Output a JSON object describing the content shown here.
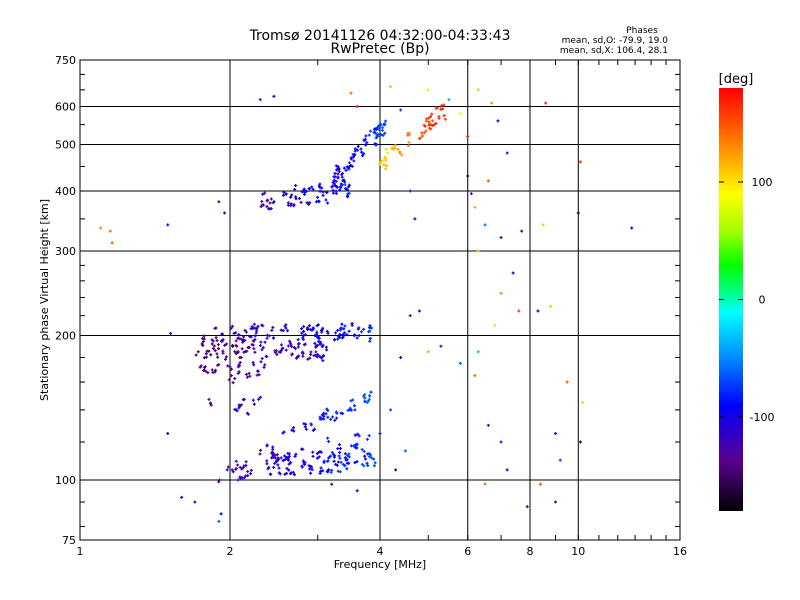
{
  "chart_data": {
    "type": "scatter",
    "title": "Tromsø 20141126 04:32:00-04:33:43",
    "subtitle": "RwPretec (Bp)",
    "xlabel": "Frequency [MHz]",
    "ylabel": "Stationary phase Virtual Height [km]",
    "x_scale": "log",
    "y_scale": "log",
    "xlim": [
      1,
      16
    ],
    "ylim": [
      75,
      750
    ],
    "x_ticks": [
      1,
      2,
      4,
      6,
      8,
      10,
      16
    ],
    "x_tick_labels": [
      "1",
      "2",
      "4",
      "6",
      "8",
      "10",
      "16"
    ],
    "y_ticks": [
      75,
      100,
      200,
      300,
      400,
      500,
      600,
      750
    ],
    "y_tick_labels": [
      "75",
      "100",
      "200",
      "300",
      "400",
      "500",
      "600",
      "750"
    ],
    "grid": true,
    "legend": {
      "title": "Phases",
      "lines": [
        "mean, sd,O: -79.9, 19.0",
        "mean, sd,X: 106.4, 28.1"
      ]
    },
    "colorbar": {
      "label": "[deg]",
      "min": -180,
      "max": 180,
      "ticks": [
        100,
        0,
        -100
      ],
      "tick_labels": [
        "100",
        "0",
        "-100"
      ]
    },
    "traces": [
      {
        "x0": 1.75,
        "x1": 3.9,
        "h0": 200,
        "h1": 205,
        "p0": -135,
        "p1": -80,
        "n": 70
      },
      {
        "x0": 1.7,
        "x1": 3.2,
        "h0": 185,
        "h1": 187,
        "p0": -150,
        "p1": -110,
        "n": 55
      },
      {
        "x0": 1.72,
        "x1": 2.4,
        "h0": 168,
        "h1": 170,
        "p0": -145,
        "p1": -120,
        "n": 20
      },
      {
        "x0": 1.78,
        "x1": 2.3,
        "h0": 143,
        "h1": 142,
        "p0": -130,
        "p1": -110,
        "n": 10
      },
      {
        "x0": 2.3,
        "x1": 3.9,
        "h0": 115,
        "h1": 150,
        "p0": -115,
        "p1": -60,
        "n": 30
      },
      {
        "x0": 2.4,
        "x1": 3.9,
        "h0": 110,
        "h1": 122,
        "p0": -120,
        "p1": -70,
        "n": 30
      },
      {
        "x0": 1.9,
        "x1": 3.9,
        "h0": 104,
        "h1": 110,
        "p0": -125,
        "p1": -75,
        "n": 60
      },
      {
        "x0": 2.3,
        "x1": 3.5,
        "h0": 380,
        "h1": 405,
        "p0": -125,
        "p1": -80,
        "n": 45
      },
      {
        "x0": 3.2,
        "x1": 4.2,
        "h0": 420,
        "h1": 560,
        "p0": -110,
        "p1": -65,
        "n": 45
      },
      {
        "x0": 4.0,
        "x1": 5.4,
        "h0": 450,
        "h1": 595,
        "p0": 100,
        "p1": 175,
        "n": 30
      }
    ],
    "scatter_points": [
      {
        "x": 1.1,
        "y": 335,
        "p": 130
      },
      {
        "x": 1.15,
        "y": 330,
        "p": 140
      },
      {
        "x": 1.16,
        "y": 312,
        "p": 150
      },
      {
        "x": 1.5,
        "y": 340,
        "p": -90
      },
      {
        "x": 1.5,
        "y": 125,
        "p": -150
      },
      {
        "x": 1.52,
        "y": 202,
        "p": -110
      },
      {
        "x": 1.6,
        "y": 92,
        "p": -110
      },
      {
        "x": 1.7,
        "y": 90,
        "p": -120
      },
      {
        "x": 1.9,
        "y": 82,
        "p": -60
      },
      {
        "x": 1.92,
        "y": 85,
        "p": -90
      },
      {
        "x": 1.9,
        "y": 380,
        "p": -130
      },
      {
        "x": 1.95,
        "y": 360,
        "p": -120
      },
      {
        "x": 2.3,
        "y": 620,
        "p": -80
      },
      {
        "x": 2.45,
        "y": 630,
        "p": -90
      },
      {
        "x": 3.5,
        "y": 640,
        "p": 140
      },
      {
        "x": 3.6,
        "y": 600,
        "p": 175
      },
      {
        "x": 4.2,
        "y": 660,
        "p": 110
      },
      {
        "x": 4.4,
        "y": 590,
        "p": -70
      },
      {
        "x": 4.6,
        "y": 400,
        "p": -100
      },
      {
        "x": 4.7,
        "y": 350,
        "p": -110
      },
      {
        "x": 5.0,
        "y": 650,
        "p": 100
      },
      {
        "x": 5.1,
        "y": 560,
        "p": 150
      },
      {
        "x": 5.5,
        "y": 620,
        "p": -40
      },
      {
        "x": 5.8,
        "y": 580,
        "p": 80
      },
      {
        "x": 6.0,
        "y": 430,
        "p": -170
      },
      {
        "x": 6.0,
        "y": 520,
        "p": 170
      },
      {
        "x": 6.1,
        "y": 395,
        "p": -130
      },
      {
        "x": 6.2,
        "y": 370,
        "p": 120
      },
      {
        "x": 6.3,
        "y": 300,
        "p": 120
      },
      {
        "x": 6.3,
        "y": 650,
        "p": 110
      },
      {
        "x": 6.5,
        "y": 340,
        "p": -60
      },
      {
        "x": 6.6,
        "y": 420,
        "p": 150
      },
      {
        "x": 6.7,
        "y": 610,
        "p": 130
      },
      {
        "x": 6.9,
        "y": 560,
        "p": -90
      },
      {
        "x": 7.0,
        "y": 320,
        "p": -120
      },
      {
        "x": 7.0,
        "y": 245,
        "p": 130
      },
      {
        "x": 7.2,
        "y": 480,
        "p": -80
      },
      {
        "x": 7.4,
        "y": 270,
        "p": -100
      },
      {
        "x": 7.6,
        "y": 225,
        "p": 160
      },
      {
        "x": 7.7,
        "y": 330,
        "p": -130
      },
      {
        "x": 8.0,
        "y": 600,
        "p": -150
      },
      {
        "x": 8.3,
        "y": 225,
        "p": -90
      },
      {
        "x": 8.6,
        "y": 610,
        "p": 170
      },
      {
        "x": 8.5,
        "y": 340,
        "p": 110
      },
      {
        "x": 8.8,
        "y": 230,
        "p": 110
      },
      {
        "x": 9.0,
        "y": 125,
        "p": -130
      },
      {
        "x": 9.2,
        "y": 110,
        "p": -70
      },
      {
        "x": 9.5,
        "y": 160,
        "p": 150
      },
      {
        "x": 9.0,
        "y": 90,
        "p": -140
      },
      {
        "x": 10.0,
        "y": 360,
        "p": -160
      },
      {
        "x": 10.1,
        "y": 460,
        "p": 160
      },
      {
        "x": 10.2,
        "y": 145,
        "p": 60
      },
      {
        "x": 10.1,
        "y": 120,
        "p": -160
      },
      {
        "x": 12.8,
        "y": 335,
        "p": -90
      },
      {
        "x": 4.6,
        "y": 220,
        "p": -130
      },
      {
        "x": 4.8,
        "y": 225,
        "p": -120
      },
      {
        "x": 5.0,
        "y": 185,
        "p": 120
      },
      {
        "x": 5.3,
        "y": 190,
        "p": -80
      },
      {
        "x": 5.8,
        "y": 175,
        "p": -60
      },
      {
        "x": 6.2,
        "y": 165,
        "p": 140
      },
      {
        "x": 6.3,
        "y": 185,
        "p": -30
      },
      {
        "x": 6.6,
        "y": 130,
        "p": -120
      },
      {
        "x": 6.8,
        "y": 210,
        "p": 100
      },
      {
        "x": 7.0,
        "y": 120,
        "p": -80
      },
      {
        "x": 7.2,
        "y": 105,
        "p": -110
      },
      {
        "x": 4.3,
        "y": 105,
        "p": -150
      },
      {
        "x": 4.5,
        "y": 115,
        "p": -60
      },
      {
        "x": 4.0,
        "y": 125,
        "p": -90
      },
      {
        "x": 4.2,
        "y": 140,
        "p": -70
      },
      {
        "x": 4.4,
        "y": 180,
        "p": -100
      },
      {
        "x": 6.5,
        "y": 98,
        "p": 140
      },
      {
        "x": 8.4,
        "y": 98,
        "p": 150
      },
      {
        "x": 7.9,
        "y": 88,
        "p": -120
      },
      {
        "x": 3.6,
        "y": 95,
        "p": -110
      },
      {
        "x": 3.2,
        "y": 98,
        "p": -120
      }
    ]
  }
}
